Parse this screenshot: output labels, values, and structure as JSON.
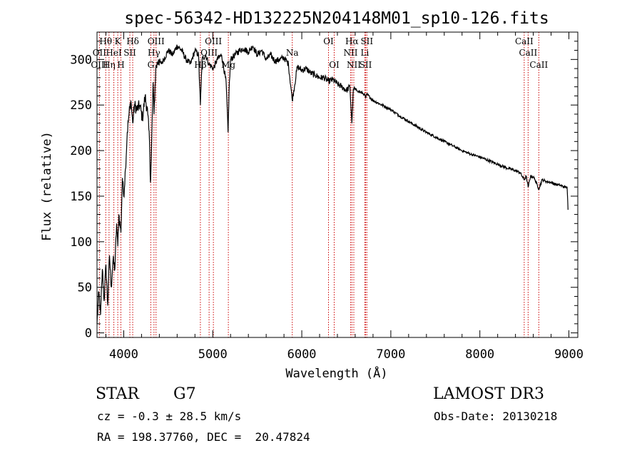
{
  "chart_data": {
    "type": "line",
    "title": "spec-56342-HD132225N204148M01_sp10-126.fits",
    "xlabel": "Wavelength (Å)",
    "ylabel": "Flux (relative)",
    "xlim": [
      3700,
      9100
    ],
    "ylim": [
      -5,
      330
    ],
    "x_ticks": [
      4000,
      5000,
      6000,
      7000,
      8000,
      9000
    ],
    "y_ticks": [
      0,
      50,
      100,
      150,
      200,
      250,
      300
    ],
    "series": [
      {
        "name": "spectrum",
        "x": [
          3700,
          3720,
          3740,
          3760,
          3780,
          3800,
          3820,
          3840,
          3860,
          3880,
          3900,
          3920,
          3933,
          3945,
          3968,
          3985,
          4000,
          4020,
          4040,
          4060,
          4080,
          4101,
          4120,
          4150,
          4180,
          4210,
          4240,
          4270,
          4290,
          4300,
          4310,
          4330,
          4340,
          4360,
          4390,
          4420,
          4450,
          4500,
          4550,
          4600,
          4650,
          4700,
          4750,
          4800,
          4840,
          4861,
          4880,
          4920,
          4957,
          5007,
          5050,
          5100,
          5150,
          5172,
          5183,
          5200,
          5250,
          5300,
          5350,
          5400,
          5450,
          5500,
          5550,
          5600,
          5650,
          5700,
          5750,
          5800,
          5850,
          5893,
          5950,
          6000,
          6050,
          6100,
          6150,
          6200,
          6250,
          6300,
          6350,
          6400,
          6450,
          6500,
          6540,
          6563,
          6580,
          6620,
          6660,
          6700,
          6717,
          6731,
          6800,
          6900,
          7000,
          7100,
          7200,
          7300,
          7400,
          7500,
          7600,
          7700,
          7800,
          7900,
          8000,
          8100,
          8200,
          8300,
          8400,
          8450,
          8498,
          8520,
          8542,
          8570,
          8600,
          8620,
          8662,
          8700,
          8750,
          8800,
          8850,
          8900,
          8950,
          8980,
          8990
        ],
        "y": [
          10,
          45,
          20,
          70,
          35,
          75,
          30,
          85,
          50,
          80,
          70,
          120,
          95,
          130,
          110,
          170,
          150,
          180,
          220,
          240,
          255,
          230,
          250,
          245,
          250,
          235,
          260,
          240,
          210,
          165,
          190,
          275,
          240,
          290,
          300,
          295,
          300,
          310,
          305,
          315,
          310,
          300,
          295,
          310,
          305,
          250,
          300,
          305,
          295,
          290,
          300,
          305,
          275,
          220,
          265,
          300,
          305,
          310,
          312,
          308,
          315,
          305,
          310,
          300,
          305,
          298,
          300,
          302,
          295,
          255,
          292,
          288,
          290,
          285,
          283,
          280,
          280,
          276,
          278,
          273,
          270,
          266,
          270,
          230,
          268,
          266,
          264,
          262,
          258,
          262,
          255,
          250,
          245,
          238,
          232,
          226,
          220,
          215,
          210,
          205,
          200,
          196,
          193,
          189,
          185,
          181,
          178,
          176,
          168,
          172,
          160,
          172,
          171,
          168,
          158,
          168,
          166,
          165,
          163,
          162,
          160,
          160,
          135
        ]
      }
    ],
    "line_labels": [
      {
        "text": "Hθ",
        "row": 0,
        "x": 3798
      },
      {
        "text": "OII",
        "row": 1,
        "x": 3727
      },
      {
        "text": "OIII",
        "row": 2,
        "x": 3727
      },
      {
        "text": "Hη",
        "row": 2,
        "x": 3835
      },
      {
        "text": "K",
        "row": 0,
        "x": 3933
      },
      {
        "text": "HeI",
        "row": 1,
        "x": 3889
      },
      {
        "text": "SII",
        "row": 1,
        "x": 4069
      },
      {
        "text": "H",
        "row": 2,
        "x": 3968
      },
      {
        "text": "Hδ",
        "row": 0,
        "x": 4101
      },
      {
        "text": "OIII",
        "row": 0,
        "x": 4363
      },
      {
        "text": "Hγ",
        "row": 1,
        "x": 4340
      },
      {
        "text": "G",
        "row": 2,
        "x": 4304
      },
      {
        "text": "OIII",
        "row": 0,
        "x": 5007
      },
      {
        "text": "OIII",
        "row": 1,
        "x": 4959
      },
      {
        "text": "Hβ",
        "row": 2,
        "x": 4861
      },
      {
        "text": "Mg",
        "row": 2,
        "x": 5175
      },
      {
        "text": "Na",
        "row": 1,
        "x": 5893
      },
      {
        "text": "OI",
        "row": 0,
        "x": 6300
      },
      {
        "text": "OI",
        "row": 2,
        "x": 6364
      },
      {
        "text": "Hα",
        "row": 0,
        "x": 6563
      },
      {
        "text": "SII",
        "row": 0,
        "x": 6731
      },
      {
        "text": "NII",
        "row": 1,
        "x": 6548
      },
      {
        "text": "Li",
        "row": 1,
        "x": 6708
      },
      {
        "text": "NII",
        "row": 2,
        "x": 6584
      },
      {
        "text": "SII",
        "row": 2,
        "x": 6717
      },
      {
        "text": "CaII",
        "row": 0,
        "x": 8498
      },
      {
        "text": "CaII",
        "row": 1,
        "x": 8542
      },
      {
        "text": "CaII",
        "row": 2,
        "x": 8662
      }
    ],
    "line_marks": [
      3727,
      3798,
      3835,
      3889,
      3933,
      3968,
      4069,
      4101,
      4304,
      4340,
      4363,
      4861,
      4959,
      5007,
      5175,
      5893,
      6300,
      6364,
      6548,
      6563,
      6584,
      6708,
      6717,
      6731,
      8498,
      8542,
      8662
    ]
  },
  "info": {
    "object_class": "STAR",
    "subclass": "G7",
    "survey": "LAMOST DR3",
    "redshift_line": "cz = -0.3 ± 28.5 km/s",
    "obs_date_line": "Obs-Date: 20130218",
    "coord_line": "RA = 198.37760, DEC =  20.47824"
  },
  "colors": {
    "line_marks": "#cc0000",
    "spectrum": "#000000"
  }
}
